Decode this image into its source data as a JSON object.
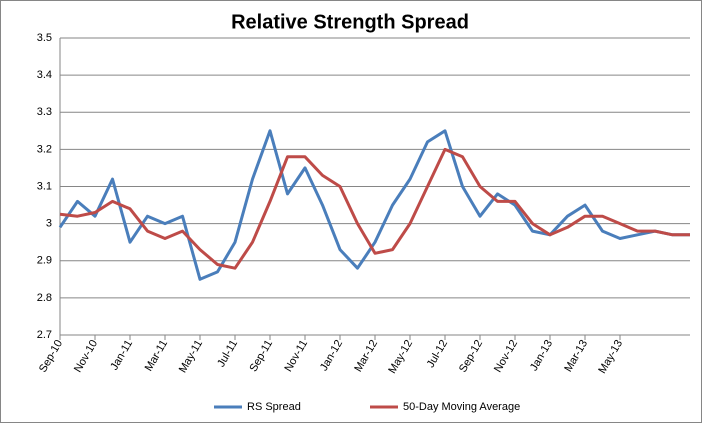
{
  "chart_data": {
    "type": "line",
    "title": "Relative Strength Spread",
    "categories": [
      "Sep-10",
      null,
      "Nov-10",
      null,
      "Jan-11",
      null,
      "Mar-11",
      null,
      "May-11",
      null,
      "Jul-11",
      null,
      "Sep-11",
      null,
      "Nov-11",
      null,
      "Jan-12",
      null,
      "Mar-12",
      null,
      "May-12",
      null,
      "Jul-12",
      null,
      "Sep-12",
      null,
      "Nov-12",
      null,
      "Jan-13",
      null,
      "Mar-13",
      null,
      "May-13",
      null,
      null,
      null,
      null
    ],
    "series": [
      {
        "name": "RS Spread",
        "color": "#4a7ebb",
        "values": [
          2.99,
          3.06,
          3.02,
          3.12,
          2.95,
          3.02,
          3.0,
          3.02,
          2.85,
          2.87,
          2.95,
          3.12,
          3.25,
          3.08,
          3.15,
          3.05,
          2.93,
          2.88,
          2.95,
          3.05,
          3.12,
          3.22,
          3.25,
          3.1,
          3.02,
          3.08,
          3.05,
          2.98,
          2.97,
          3.02,
          3.05,
          2.98,
          2.96,
          2.97,
          2.98,
          2.97,
          2.97
        ]
      },
      {
        "name": "50-Day Moving Average",
        "color": "#be4b48",
        "values": [
          3.025,
          3.02,
          3.03,
          3.06,
          3.04,
          2.98,
          2.96,
          2.98,
          2.93,
          2.89,
          2.88,
          2.95,
          3.06,
          3.18,
          3.18,
          3.13,
          3.1,
          3.0,
          2.92,
          2.93,
          3.0,
          3.1,
          3.2,
          3.18,
          3.1,
          3.06,
          3.06,
          3.0,
          2.97,
          2.99,
          3.02,
          3.02,
          3.0,
          2.98,
          2.98,
          2.97,
          2.97
        ]
      }
    ],
    "ylim": [
      2.7,
      3.5
    ],
    "yticks": [
      2.7,
      2.8,
      2.9,
      3,
      3.1,
      3.2,
      3.3,
      3.4,
      3.5
    ],
    "grid": true,
    "legend": "bottom"
  }
}
